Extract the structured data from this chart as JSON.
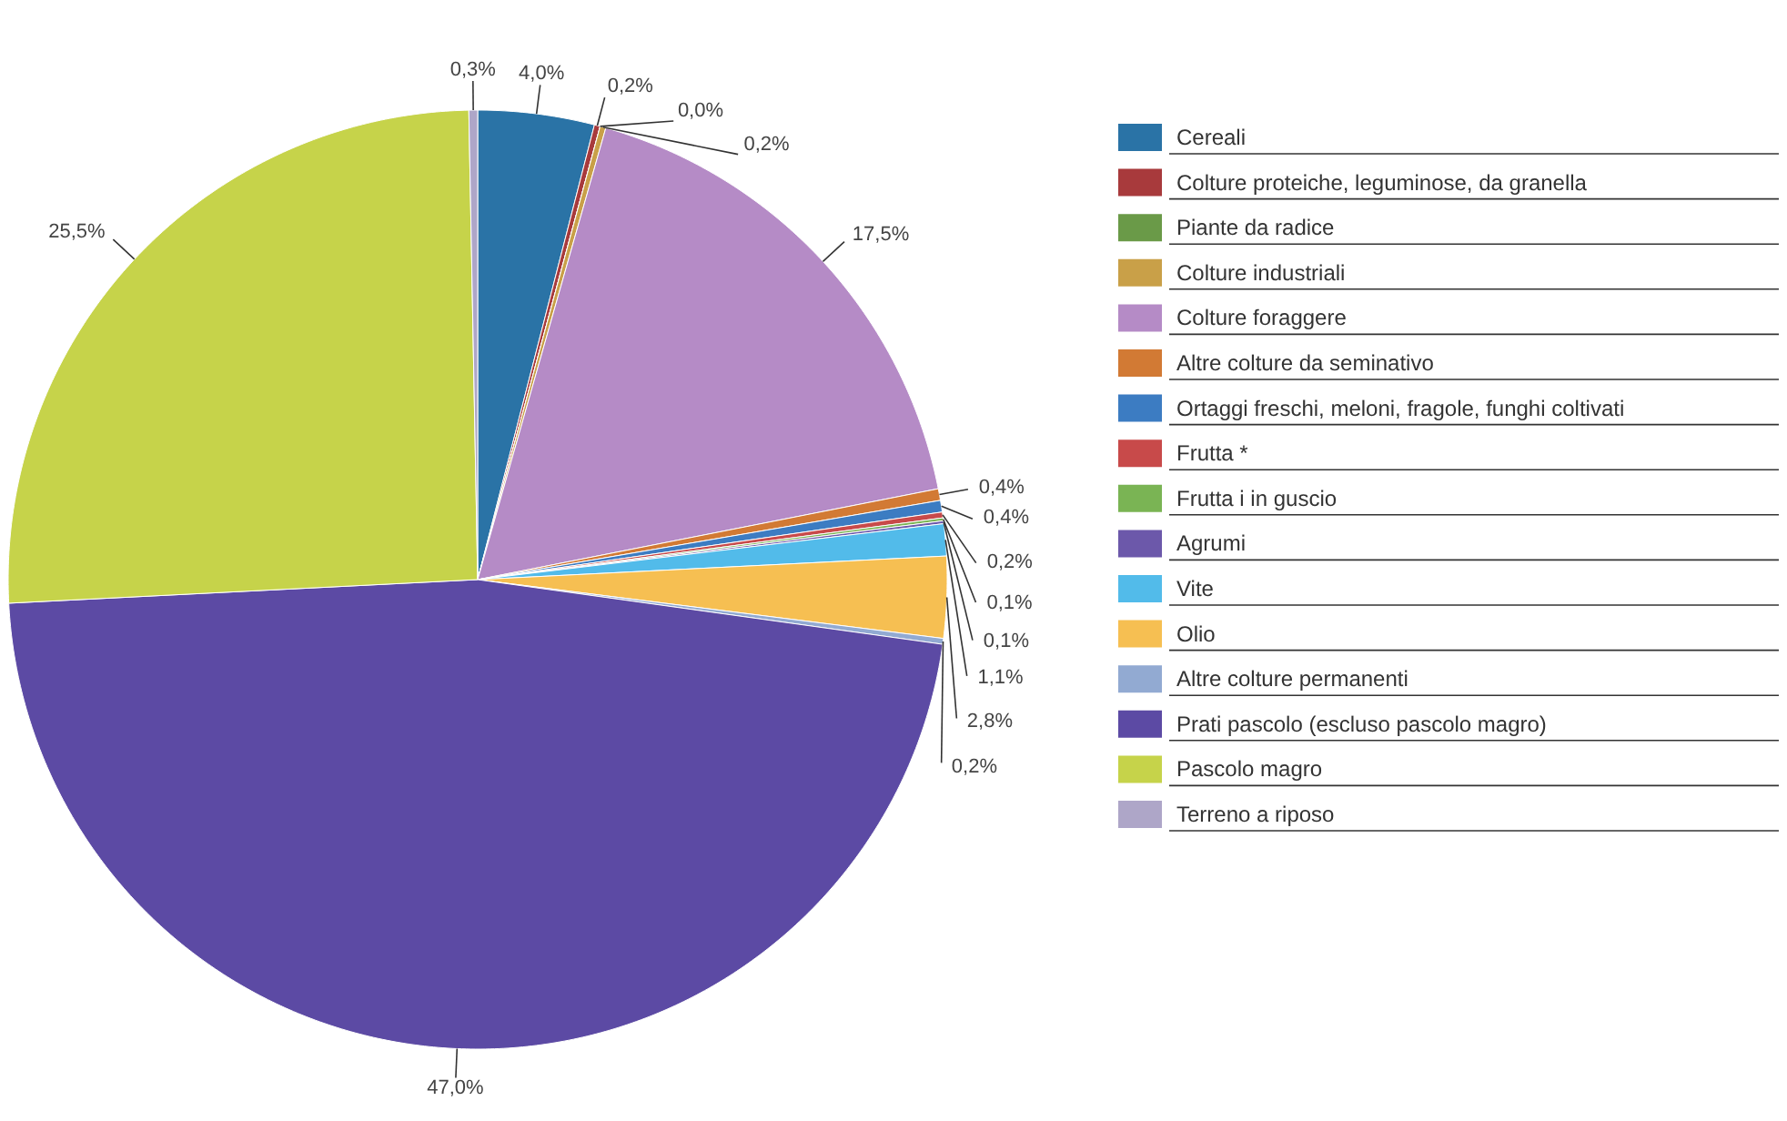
{
  "chart_data": {
    "type": "pie",
    "categories": [
      "Cereali",
      "Colture proteiche, leguminose, da granella",
      "Piante da radice",
      "Colture industriali",
      "Colture foraggere",
      "Altre colture da seminativo",
      "Ortaggi freschi, meloni, fragole, funghi coltivati",
      "Frutta *",
      "Frutta i in guscio",
      "Agrumi",
      "Vite",
      "Olio",
      "Altre colture permanenti",
      "Prati pascolo (escluso pascolo magro)",
      "Pascolo magro",
      "Terreno a riposo"
    ],
    "values": [
      4.0,
      0.2,
      0.0,
      0.2,
      17.5,
      0.4,
      0.4,
      0.2,
      0.1,
      0.1,
      1.1,
      2.8,
      0.2,
      47.0,
      25.5,
      0.3
    ],
    "colors": [
      "#2a73a6",
      "#a83a3c",
      "#6a9a48",
      "#c9a048",
      "#b58bc6",
      "#d27a34",
      "#3c7cc2",
      "#c84a4a",
      "#7ab454",
      "#6c58aa",
      "#52bbea",
      "#f6bf52",
      "#92aad2",
      "#5c4aa4",
      "#c6d34a",
      "#aea6c8"
    ],
    "data_labels": true,
    "value_labels": [
      "4,0%",
      "0,2%",
      "0,0%",
      "0,2%",
      "17,5%",
      "0,4%",
      "0,4%",
      "0,2%",
      "0,1%",
      "0,1%",
      "1,1%",
      "2,8%",
      "0,2%",
      "47,0%",
      "25,5%",
      "0,3%"
    ],
    "legend": "right"
  }
}
